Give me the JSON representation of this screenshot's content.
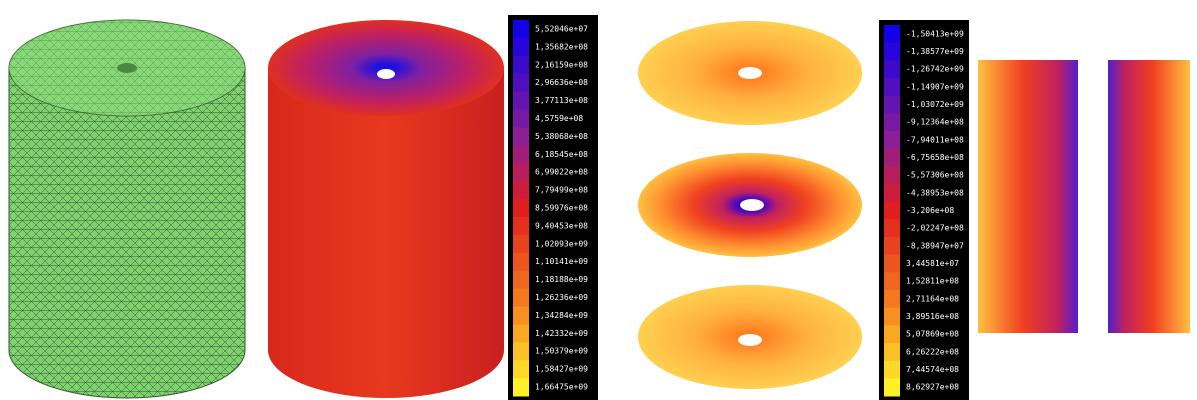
{
  "colorbars": [
    {
      "labels": [
        "5,52046e+07",
        "1,35682e+08",
        "2,16159e+08",
        "2,96636e+08",
        "3,77113e+08",
        "4,5759e+08",
        "5,38068e+08",
        "6,18545e+08",
        "6,99022e+08",
        "7,79499e+08",
        "8,59976e+08",
        "9,40453e+08",
        "1,02093e+09",
        "1,10141e+09",
        "1,18188e+09",
        "1,26236e+09",
        "1,34284e+09",
        "1,42332e+09",
        "1,50379e+09",
        "1,58427e+09",
        "1,66475e+09"
      ]
    },
    {
      "labels": [
        "-1,50413e+09",
        "-1,38577e+09",
        "-1,26742e+09",
        "-1,14907e+09",
        "-1,03072e+09",
        "-9,12364e+08",
        "-7,94011e+08",
        "-6,75658e+08",
        "-5,57306e+08",
        "-4,38953e+08",
        "-3,206e+08",
        "-2,02247e+08",
        "-8,38947e+07",
        "3,44581e+07",
        "1,52811e+08",
        "2,71164e+08",
        "3,89516e+08",
        "5,07869e+08",
        "6,26222e+08",
        "7,44574e+08",
        "8,62927e+08"
      ]
    }
  ]
}
